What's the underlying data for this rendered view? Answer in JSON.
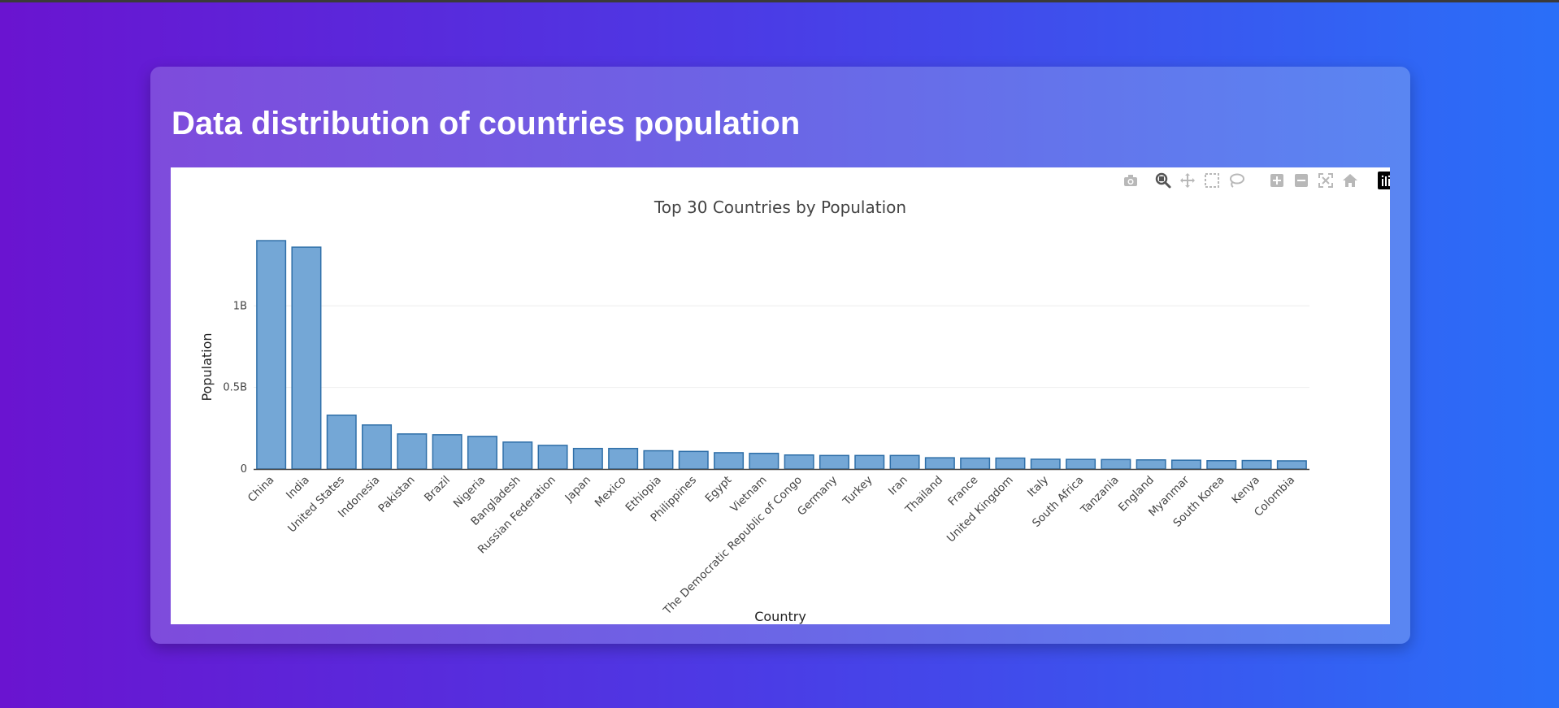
{
  "page": {
    "heading": "Data distribution of countries population"
  },
  "modebar": {
    "buttons": [
      {
        "name": "camera-icon"
      },
      {
        "name": "zoom-icon"
      },
      {
        "name": "pan-icon"
      },
      {
        "name": "box-select-icon"
      },
      {
        "name": "lasso-select-icon"
      },
      {
        "name": "zoom-in-icon"
      },
      {
        "name": "zoom-out-icon"
      },
      {
        "name": "autoscale-icon"
      },
      {
        "name": "reset-axes-icon"
      },
      {
        "name": "plotly-logo-icon"
      }
    ]
  },
  "colors": {
    "bar_fill": "#74a7d6",
    "bar_stroke": "#2f6fa8",
    "grid": "#eeeeee",
    "text": "#444444"
  },
  "chart_data": {
    "type": "bar",
    "title": "Top 30 Countries by Population",
    "xlabel": "Country",
    "ylabel": "Population",
    "ylim": [
      0,
      1450000000
    ],
    "yticks": [
      {
        "value": 0,
        "label": "0"
      },
      {
        "value": 500000000,
        "label": "0.5B"
      },
      {
        "value": 1000000000,
        "label": "1B"
      }
    ],
    "grid": true,
    "categories": [
      "China",
      "India",
      "United States",
      "Indonesia",
      "Pakistan",
      "Brazil",
      "Nigeria",
      "Bangladesh",
      "Russian Federation",
      "Japan",
      "Mexico",
      "Ethiopia",
      "Philippines",
      "Egypt",
      "Vietnam",
      "The Democratic Republic of Congo",
      "Germany",
      "Turkey",
      "Iran",
      "Thailand",
      "France",
      "United Kingdom",
      "Italy",
      "South Africa",
      "Tanzania",
      "England",
      "Myanmar",
      "South Korea",
      "Kenya",
      "Colombia"
    ],
    "values": [
      1400000000,
      1360000000,
      330000000,
      270000000,
      215000000,
      210000000,
      200000000,
      165000000,
      145000000,
      126000000,
      126000000,
      112000000,
      108000000,
      100000000,
      96000000,
      86000000,
      83000000,
      83000000,
      83000000,
      69000000,
      67000000,
      67000000,
      60000000,
      59000000,
      58000000,
      56000000,
      54000000,
      51000000,
      52000000,
      50000000
    ]
  }
}
